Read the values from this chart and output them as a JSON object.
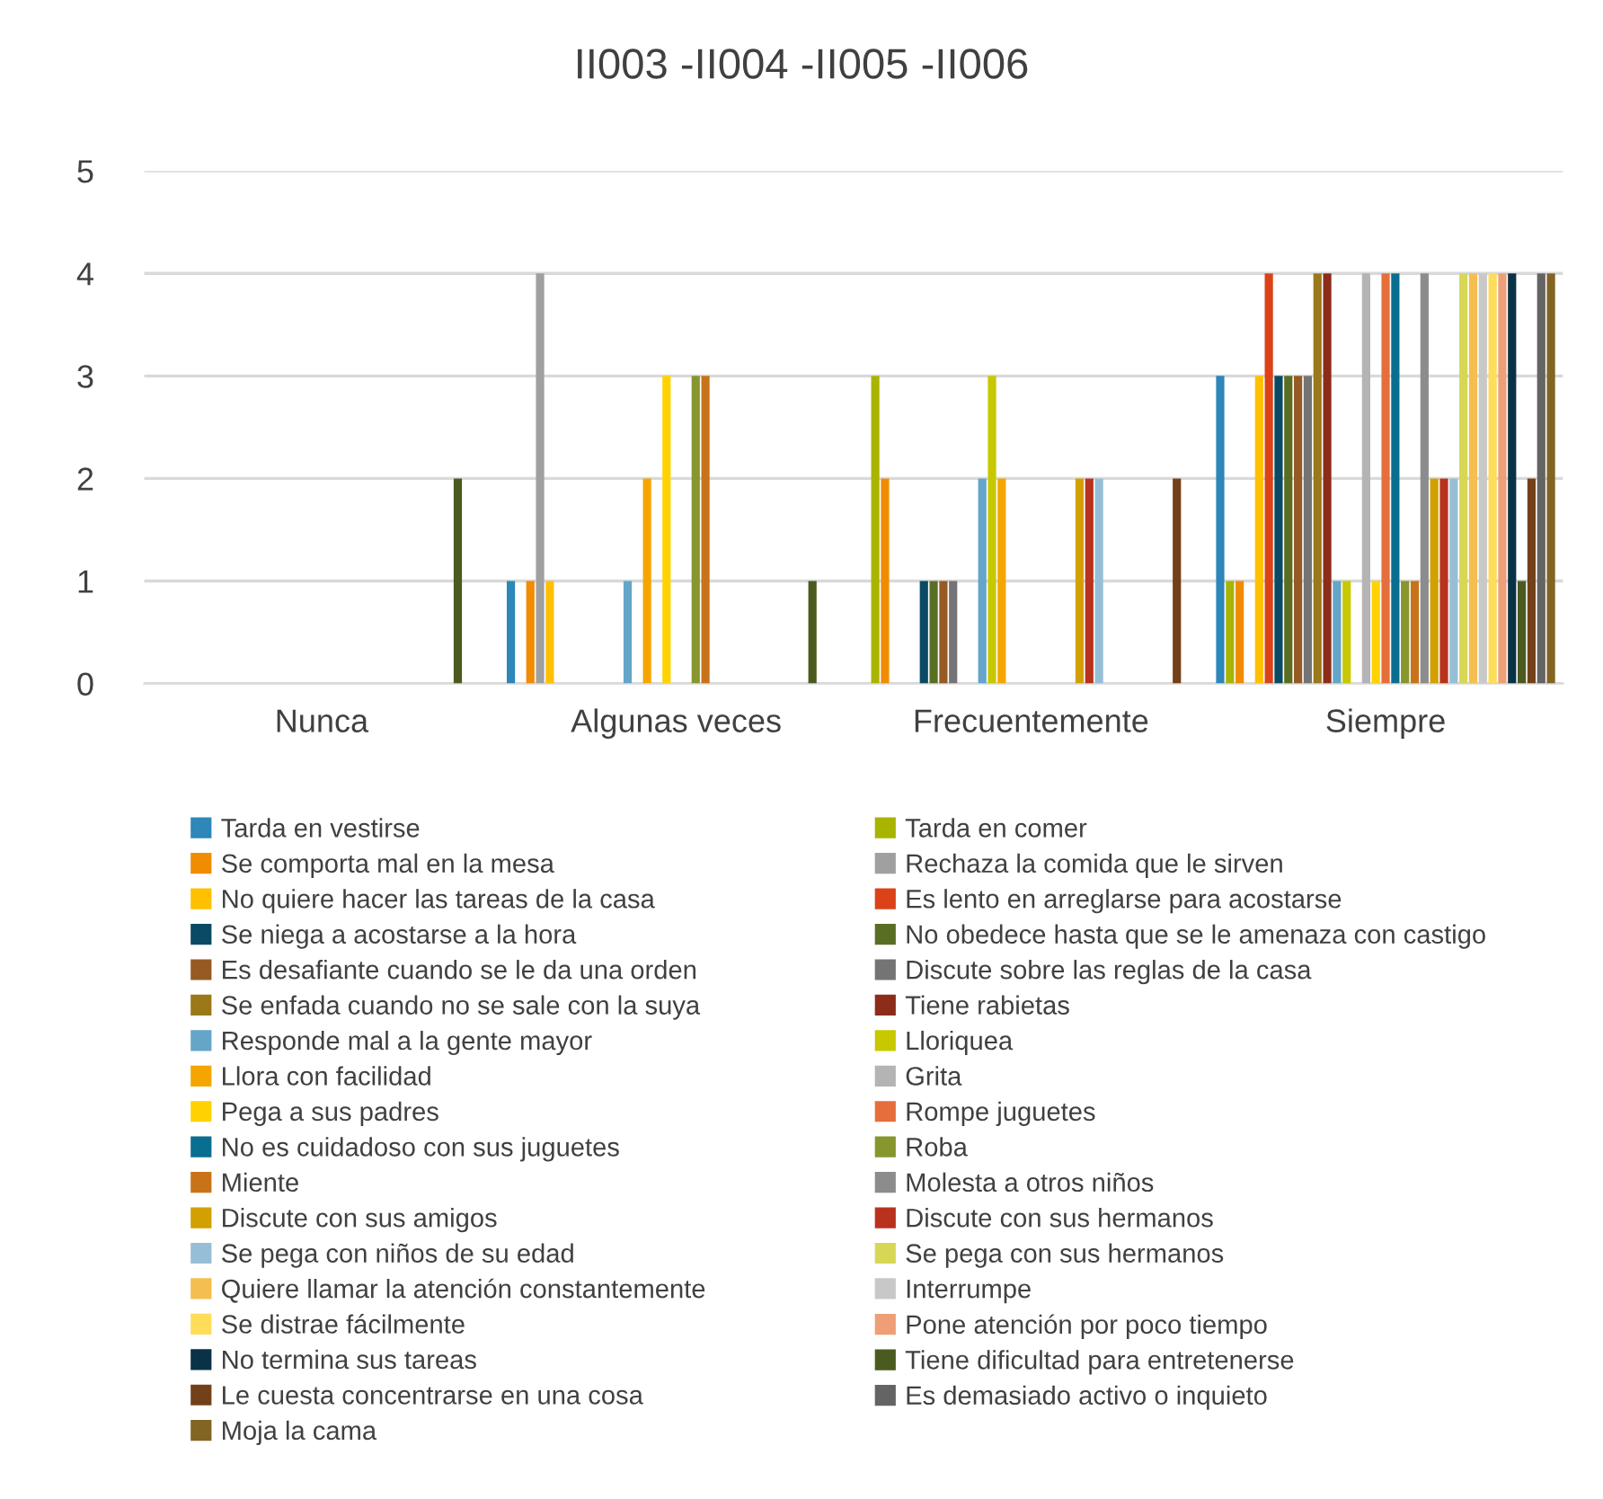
{
  "chart_data": {
    "type": "bar",
    "title": "II003 -II004 -II005 -II006",
    "categories": [
      "Nunca",
      "Algunas veces",
      "Frecuentemente",
      "Siempre"
    ],
    "ylim": [
      0,
      5
    ],
    "yticks": [
      0,
      1,
      2,
      3,
      4,
      5
    ],
    "grid": "y",
    "legend": "bottom",
    "series": [
      {
        "name": "Tarda en vestirse",
        "color": "#2e86b9",
        "values": [
          0,
          1,
          0,
          3
        ]
      },
      {
        "name": "Tarda en comer",
        "color": "#a9b400",
        "values": [
          0,
          0,
          3,
          1
        ]
      },
      {
        "name": "Se comporta mal en la mesa",
        "color": "#f08c00",
        "values": [
          0,
          1,
          2,
          1
        ]
      },
      {
        "name": "Rechaza la comida que le sirven",
        "color": "#a0a0a0",
        "values": [
          0,
          4,
          0,
          0
        ]
      },
      {
        "name": "No quiere hacer las tareas de la casa",
        "color": "#ffc000",
        "values": [
          0,
          1,
          0,
          3
        ]
      },
      {
        "name": "Es lento en arreglarse para acostarse",
        "color": "#dc4218",
        "values": [
          0,
          0,
          0,
          4
        ]
      },
      {
        "name": "Se niega a acostarse a la hora",
        "color": "#0a4a64",
        "values": [
          0,
          0,
          1,
          3
        ]
      },
      {
        "name": "No obedece hasta que se le amenaza con castigo",
        "color": "#5a6e23",
        "values": [
          0,
          0,
          1,
          3
        ]
      },
      {
        "name": "Es desafiante cuando se le da una orden",
        "color": "#965a23",
        "values": [
          0,
          0,
          1,
          3
        ]
      },
      {
        "name": "Discute sobre las reglas de la casa",
        "color": "#747474",
        "values": [
          0,
          0,
          1,
          3
        ]
      },
      {
        "name": "Se enfada cuando no se sale con la suya",
        "color": "#9b7819",
        "values": [
          0,
          0,
          0,
          4
        ]
      },
      {
        "name": "Tiene rabietas",
        "color": "#8c2d19",
        "values": [
          0,
          0,
          0,
          4
        ]
      },
      {
        "name": "Responde mal a la gente mayor",
        "color": "#64a5c8",
        "values": [
          0,
          1,
          2,
          1
        ]
      },
      {
        "name": "Lloriquea",
        "color": "#c8c800",
        "values": [
          0,
          0,
          3,
          1
        ]
      },
      {
        "name": "Llora con facilidad",
        "color": "#f5a500",
        "values": [
          0,
          2,
          2,
          0
        ]
      },
      {
        "name": "Grita",
        "color": "#b4b4b4",
        "values": [
          0,
          0,
          0,
          4
        ]
      },
      {
        "name": "Pega a sus padres",
        "color": "#ffd200",
        "values": [
          0,
          3,
          0,
          1
        ]
      },
      {
        "name": "Rompe juguetes",
        "color": "#e66e3c",
        "values": [
          0,
          0,
          0,
          4
        ]
      },
      {
        "name": "No es cuidadoso con sus juguetes",
        "color": "#0a6e91",
        "values": [
          0,
          0,
          0,
          4
        ]
      },
      {
        "name": "Roba",
        "color": "#87962d",
        "values": [
          0,
          3,
          0,
          1
        ]
      },
      {
        "name": "Miente",
        "color": "#c87319",
        "values": [
          0,
          3,
          0,
          1
        ]
      },
      {
        "name": "Molesta a otros niños",
        "color": "#8c8c8c",
        "values": [
          0,
          0,
          0,
          4
        ]
      },
      {
        "name": "Discute con sus amigos",
        "color": "#d2a000",
        "values": [
          0,
          0,
          2,
          2
        ]
      },
      {
        "name": "Discute con sus hermanos",
        "color": "#b9321e",
        "values": [
          0,
          0,
          2,
          2
        ]
      },
      {
        "name": "Se pega con niños de su edad",
        "color": "#96bed7",
        "values": [
          0,
          0,
          2,
          2
        ]
      },
      {
        "name": "Se pega con sus hermanos",
        "color": "#d7d755",
        "values": [
          0,
          0,
          0,
          4
        ]
      },
      {
        "name": "Quiere llamar la atención constantemente",
        "color": "#f5be50",
        "values": [
          0,
          0,
          0,
          4
        ]
      },
      {
        "name": "Interrumpe",
        "color": "#c8c8c8",
        "values": [
          0,
          0,
          0,
          4
        ]
      },
      {
        "name": "Se distrae fácilmente",
        "color": "#ffdc5a",
        "values": [
          0,
          0,
          0,
          4
        ]
      },
      {
        "name": "Pone atención por poco tiempo",
        "color": "#ee9f78",
        "values": [
          0,
          0,
          0,
          4
        ]
      },
      {
        "name": "No termina sus tareas",
        "color": "#0a3246",
        "values": [
          0,
          0,
          0,
          4
        ]
      },
      {
        "name": "Tiene dificultad para entretenerse",
        "color": "#4b5a1e",
        "values": [
          2,
          1,
          0,
          1
        ]
      },
      {
        "name": "Le cuesta concentrarse en una cosa",
        "color": "#734119",
        "values": [
          0,
          0,
          2,
          2
        ]
      },
      {
        "name": "Es demasiado activo o inquieto",
        "color": "#646464",
        "values": [
          0,
          0,
          0,
          4
        ]
      },
      {
        "name": "Moja la cama",
        "color": "#826423",
        "values": [
          0,
          0,
          0,
          4
        ]
      }
    ]
  }
}
